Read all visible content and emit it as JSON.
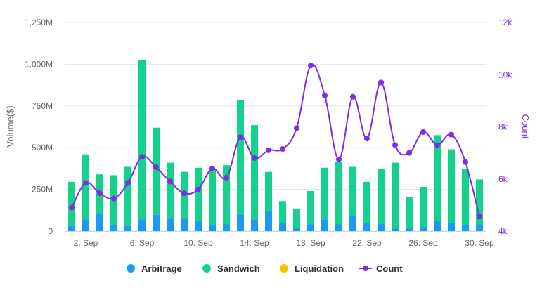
{
  "chart_data": {
    "type": "bar",
    "stacked": true,
    "categories": [
      "1. Sep",
      "2. Sep",
      "3. Sep",
      "4. Sep",
      "5. Sep",
      "6. Sep",
      "7. Sep",
      "8. Sep",
      "9. Sep",
      "10. Sep",
      "11. Sep",
      "12. Sep",
      "13. Sep",
      "14. Sep",
      "15. Sep",
      "16. Sep",
      "17. Sep",
      "18. Sep",
      "19. Sep",
      "20. Sep",
      "21. Sep",
      "22. Sep",
      "23. Sep",
      "24. Sep",
      "25. Sep",
      "26. Sep",
      "27. Sep",
      "28. Sep",
      "29. Sep",
      "30. Sep"
    ],
    "x_tick_labels": [
      "2. Sep",
      "6. Sep",
      "10. Sep",
      "14. Sep",
      "18. Sep",
      "22. Sep",
      "26. Sep",
      "30. Sep"
    ],
    "series": [
      {
        "name": "Arbitrage",
        "axis": "left",
        "color": "#1a9bf2",
        "values": [
          30,
          70,
          105,
          35,
          30,
          70,
          100,
          75,
          75,
          60,
          35,
          40,
          100,
          70,
          120,
          50,
          20,
          40,
          70,
          40,
          95,
          50,
          45,
          15,
          20,
          25,
          60,
          50,
          35,
          40
        ]
      },
      {
        "name": "Sandwich",
        "axis": "left",
        "color": "#14d18e",
        "values": [
          265,
          390,
          235,
          300,
          355,
          955,
          520,
          335,
          280,
          320,
          330,
          355,
          685,
          565,
          235,
          130,
          115,
          200,
          310,
          375,
          290,
          245,
          330,
          395,
          185,
          240,
          515,
          440,
          340,
          270
        ]
      },
      {
        "name": "Liquidation",
        "axis": "left",
        "color": "#f5c400",
        "values": [
          0,
          0,
          0,
          0,
          0,
          0,
          0,
          0,
          0,
          0,
          0,
          0,
          0,
          0,
          0,
          0,
          0,
          0,
          0,
          0,
          0,
          0,
          0,
          0,
          0,
          0,
          0,
          0,
          0,
          0
        ]
      },
      {
        "name": "Count",
        "axis": "right",
        "type": "line",
        "color": "#7b2fe0",
        "values": [
          4.9,
          5.85,
          5.45,
          5.25,
          5.85,
          6.85,
          6.45,
          5.9,
          5.45,
          5.6,
          6.4,
          6.05,
          7.6,
          6.8,
          7.1,
          7.15,
          7.95,
          10.35,
          9.2,
          6.75,
          9.15,
          7.55,
          9.7,
          7.3,
          7.0,
          7.8,
          7.3,
          7.7,
          6.65,
          4.55
        ]
      }
    ],
    "y_left": {
      "label": "Volume($)",
      "ticks": [
        "0",
        "250M",
        "500M",
        "750M",
        "1,000M",
        "1,250M"
      ],
      "ylim": [
        0,
        1250
      ]
    },
    "y_right": {
      "label": "Count",
      "ticks": [
        "4k",
        "6k",
        "8k",
        "10k",
        "12k"
      ],
      "ylim": [
        4,
        12
      ]
    },
    "legend": [
      "Arbitrage",
      "Sandwich",
      "Liquidation",
      "Count"
    ],
    "legend_position": "bottom-center",
    "grid": true
  }
}
